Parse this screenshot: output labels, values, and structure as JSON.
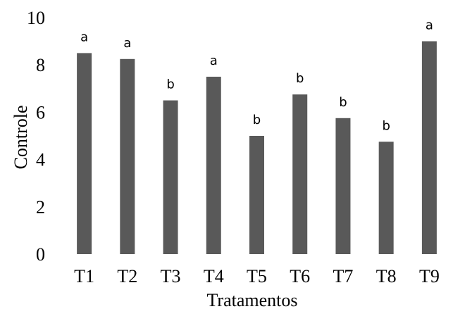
{
  "chart_data": {
    "type": "bar",
    "categories": [
      "T1",
      "T2",
      "T3",
      "T4",
      "T5",
      "T6",
      "T7",
      "T8",
      "T9"
    ],
    "values": [
      8.5,
      8.25,
      6.5,
      7.5,
      5.0,
      6.75,
      5.75,
      4.75,
      9.0
    ],
    "data_labels": [
      "a",
      "a",
      "b",
      "a",
      "b",
      "b",
      "b",
      "b",
      "a"
    ],
    "title": "",
    "xlabel": "Tratamentos",
    "ylabel": "Controle",
    "ylim": [
      0,
      10
    ],
    "yticks": [
      0,
      2,
      4,
      6,
      8,
      10
    ],
    "grid": false,
    "legend": "none",
    "bar_color": "#595959"
  }
}
